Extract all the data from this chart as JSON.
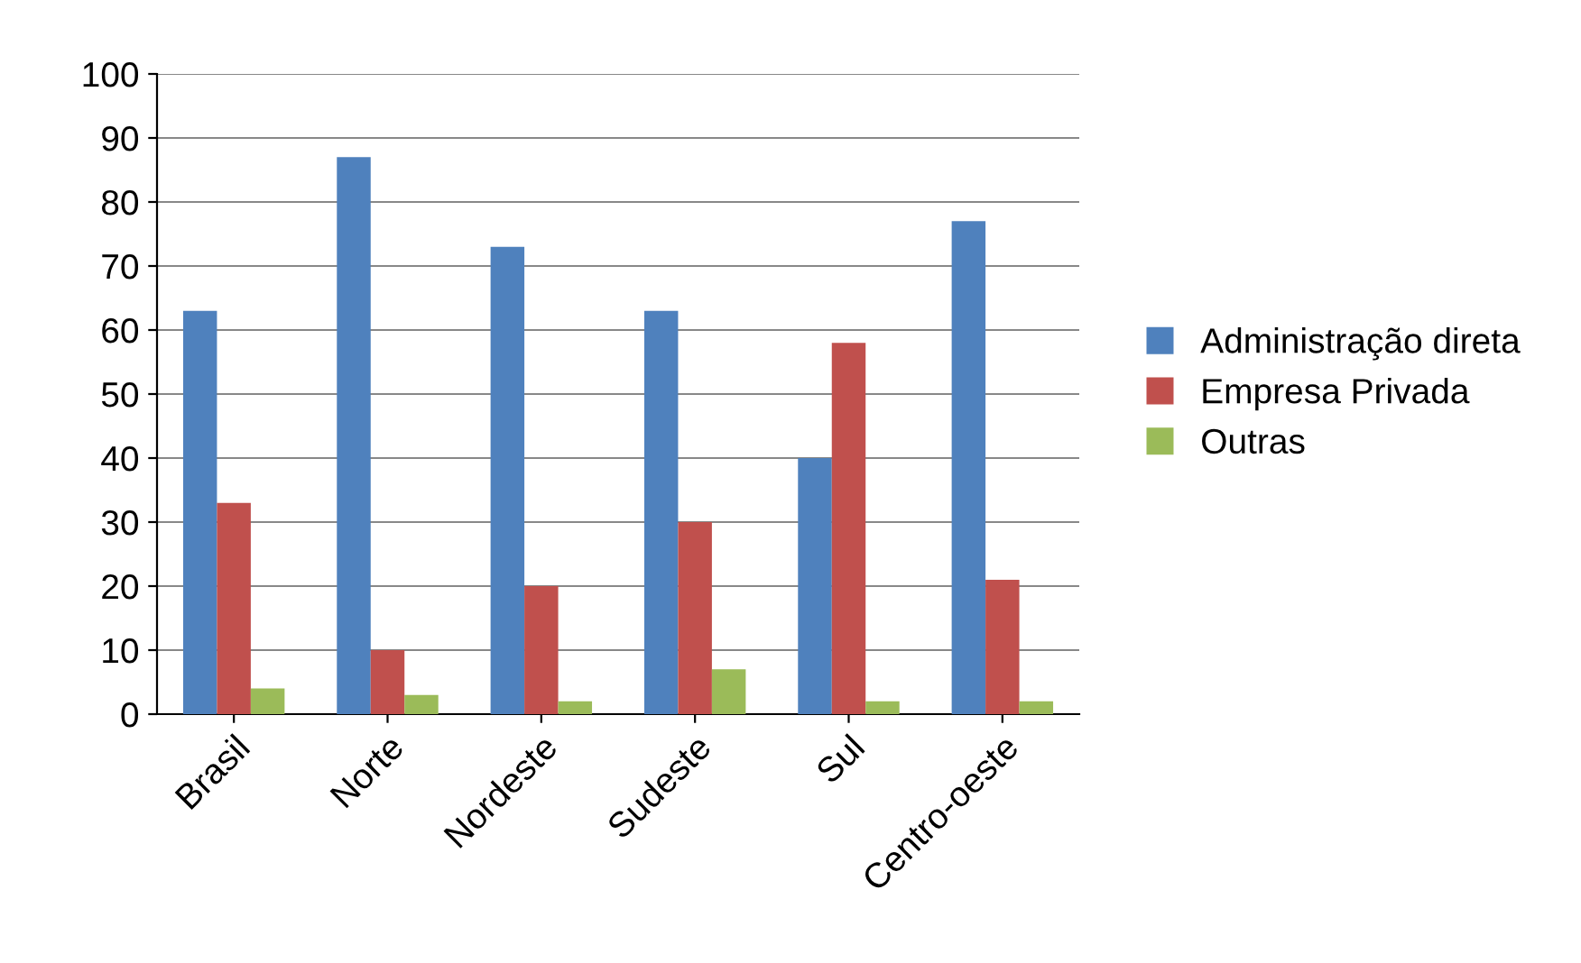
{
  "chart_data": {
    "type": "bar",
    "categories": [
      "Brasil",
      "Norte",
      "Nordeste",
      "Sudeste",
      "Sul",
      "Centro-oeste"
    ],
    "series": [
      {
        "name": "Administração direta",
        "color": "#4f81bd",
        "values": [
          63,
          87,
          73,
          63,
          40,
          77
        ]
      },
      {
        "name": "Empresa Privada",
        "color": "#c0504d",
        "values": [
          33,
          10,
          20,
          30,
          58,
          21
        ]
      },
      {
        "name": "Outras",
        "color": "#9bbb59",
        "values": [
          4,
          3,
          2,
          7,
          2,
          2
        ]
      }
    ],
    "ylim": [
      0,
      100
    ],
    "yticks": [
      0,
      10,
      20,
      30,
      40,
      50,
      60,
      70,
      80,
      90,
      100
    ],
    "grid": "y",
    "legend": "right"
  }
}
